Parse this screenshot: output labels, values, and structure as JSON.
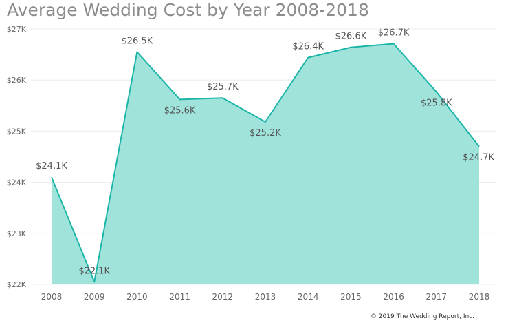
{
  "chart_data": {
    "type": "area",
    "title": "Average Wedding Cost by Year 2008-2018",
    "xlabel": "",
    "ylabel": "",
    "x": [
      "2008",
      "2009",
      "2010",
      "2011",
      "2012",
      "2013",
      "2014",
      "2015",
      "2016",
      "2017",
      "2018"
    ],
    "series": [
      {
        "values": [
          24100,
          22050,
          26550,
          25620,
          25650,
          25180,
          26440,
          26640,
          26710,
          25770,
          24700
        ],
        "data_labels": [
          "$24.1K",
          "$22.1K",
          "$26.5K",
          "$25.6K",
          "$25.7K",
          "$25.2K",
          "$26.4K",
          "$26.6K",
          "$26.7K",
          "$25.8K",
          "$24.7K"
        ]
      }
    ],
    "ylim": [
      22000,
      27000
    ],
    "y_ticks": [
      {
        "value": 22000,
        "label": "$22K"
      },
      {
        "value": 23000,
        "label": "$23K"
      },
      {
        "value": 24000,
        "label": "$24K"
      },
      {
        "value": 25000,
        "label": "$25K"
      },
      {
        "value": 26000,
        "label": "$26K"
      },
      {
        "value": 27000,
        "label": "$27K"
      }
    ],
    "grid": true,
    "legend": "none",
    "colors": {
      "fill": "#a0e3da",
      "line": "#1bb5a8",
      "grid": "#ececec",
      "tick_text": "#666666",
      "data_label_text": "#555555"
    }
  },
  "footnote": "© 2019 The Wedding Report, Inc."
}
